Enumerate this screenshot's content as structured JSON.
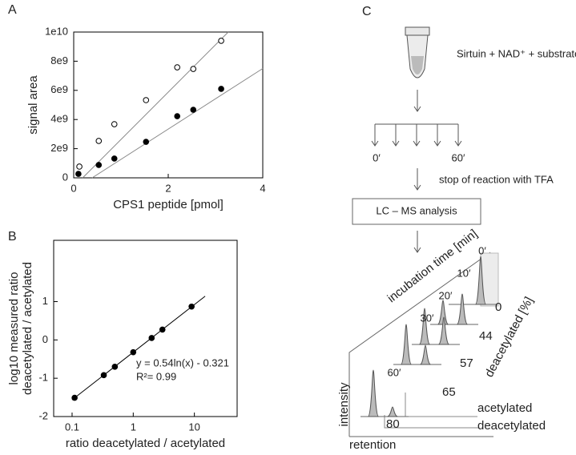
{
  "panel_labels": [
    "A",
    "B",
    "C"
  ],
  "chart_data": [
    {
      "type": "scatter",
      "x_label": "CPS1 peptide [pmol]",
      "y_label": "signal area",
      "xlim": [
        0,
        4
      ],
      "xticks": [
        0,
        2,
        4
      ],
      "ylim": [
        0,
        10000000000
      ],
      "yticks": [
        0,
        {
          "value": 2000000000,
          "label": "2e9"
        },
        {
          "value": 4000000000,
          "label": "4e9"
        },
        {
          "value": 6000000000,
          "label": "6e9"
        },
        {
          "value": 8000000000,
          "label": "8e9"
        },
        {
          "value": 10000000000,
          "label": "1e10"
        }
      ],
      "series": [
        {
          "marker": "open",
          "color": "#000000",
          "x": [
            0.12,
            0.53,
            0.86,
            1.53,
            2.19,
            2.53,
            3.12
          ],
          "values": [
            770000000,
            2530000000,
            3680000000,
            5330000000,
            7580000000,
            7470000000,
            9400000000
          ]
        },
        {
          "marker": "filled",
          "color": "#000000",
          "x": [
            0.1,
            0.53,
            0.86,
            1.53,
            2.19,
            2.53,
            3.12
          ],
          "values": [
            270000000,
            880000000,
            1320000000,
            2470000000,
            4230000000,
            4670000000,
            6100000000
          ]
        }
      ],
      "fits": [
        {
          "color": "#888888",
          "x": [
            0.19,
            3.27
          ],
          "values": [
            0,
            10000000000
          ]
        },
        {
          "color": "#888888",
          "x": [
            0.39,
            4
          ],
          "values": [
            0,
            7500000000
          ]
        }
      ]
    },
    {
      "type": "scatter",
      "x_label": "ratio deacetylated / acetylated",
      "y_label": [
        "log10 measured ratio",
        "deacetylated / acetylated"
      ],
      "log_x": true,
      "xlim": [
        0.05,
        50
      ],
      "xticks": [
        0.1,
        1,
        10
      ],
      "ylim": [
        -2,
        2.6
      ],
      "yticks": [
        -2,
        -1,
        0,
        1
      ],
      "series": [
        {
          "marker": "filled",
          "color": "#000000",
          "x": [
            0.11,
            0.33,
            0.5,
            1,
            2,
            3,
            9
          ],
          "values": [
            -1.51,
            -0.92,
            -0.7,
            -0.32,
            0.05,
            0.27,
            0.87
          ]
        }
      ],
      "fits": [
        {
          "color": "#000000",
          "x": [
            0.1,
            15
          ],
          "values": [
            -1.564,
            1.141
          ]
        }
      ],
      "annotations": [
        "y = 0.54ln(x) - 0.321",
        "R²= 0.99"
      ]
    }
  ],
  "diagram": {
    "mix": "Sirtuin + NAD⁺ + substrate",
    "time_start": "0′",
    "time_end": "60′",
    "stop": "stop of reaction with TFA",
    "analysis": "LC – MS analysis",
    "time_axis": "incubation time [min]",
    "times": [
      "0′",
      "10′",
      "20′",
      "30′",
      "60′"
    ],
    "percent": [
      "0",
      "44",
      "57",
      "65",
      "80"
    ],
    "percent_axis": "deacetylated [%]",
    "peak_acetylated": "acetylated",
    "peak_deacetylated": "deacetylated",
    "intensity": "intensity",
    "retention": "retention"
  }
}
